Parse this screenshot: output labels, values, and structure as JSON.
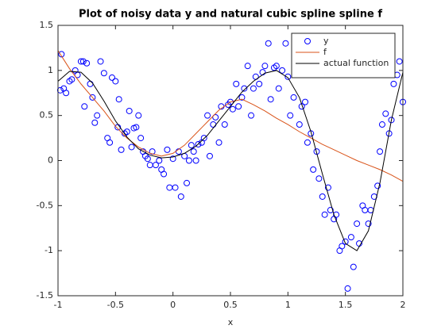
{
  "chart_data": {
    "type": "line",
    "title": "Plot of noisy data y and natural cubic spline spline f",
    "xlabel": "x",
    "xlim": [
      -1,
      2
    ],
    "ylim": [
      -1.5,
      1.5
    ],
    "xticks": [
      -1,
      -0.5,
      0,
      0.5,
      1,
      1.5,
      2
    ],
    "yticks": [
      -1.5,
      -1,
      -0.5,
      0,
      0.5,
      1,
      1.5
    ],
    "legend": "northeast",
    "x": [
      -1,
      -0.9,
      -0.8,
      -0.7,
      -0.6,
      -0.5,
      -0.4,
      -0.3,
      -0.2,
      -0.1,
      0,
      0.1,
      0.2,
      0.3,
      0.4,
      0.5,
      0.6,
      0.7,
      0.8,
      0.9,
      1,
      1.1,
      1.2,
      1.3,
      1.4,
      1.5,
      1.6,
      1.7,
      1.8,
      1.9,
      2
    ],
    "series": [
      {
        "name": "y",
        "color": "#0000ff",
        "marker": "circle",
        "x": [
          -0.98,
          -0.97,
          -0.95,
          -0.93,
          -0.9,
          -0.88,
          -0.85,
          -0.83,
          -0.8,
          -0.78,
          -0.77,
          -0.75,
          -0.72,
          -0.7,
          -0.68,
          -0.66,
          -0.63,
          -0.6,
          -0.57,
          -0.55,
          -0.53,
          -0.5,
          -0.48,
          -0.47,
          -0.45,
          -0.42,
          -0.4,
          -0.38,
          -0.36,
          -0.34,
          -0.32,
          -0.3,
          -0.28,
          -0.26,
          -0.24,
          -0.22,
          -0.2,
          -0.18,
          -0.15,
          -0.12,
          -0.1,
          -0.08,
          -0.05,
          -0.03,
          0,
          0.02,
          0.05,
          0.07,
          0.1,
          0.12,
          0.14,
          0.16,
          0.18,
          0.2,
          0.22,
          0.25,
          0.27,
          0.3,
          0.32,
          0.35,
          0.37,
          0.4,
          0.42,
          0.45,
          0.48,
          0.5,
          0.52,
          0.55,
          0.57,
          0.6,
          0.62,
          0.65,
          0.68,
          0.7,
          0.72,
          0.75,
          0.78,
          0.8,
          0.83,
          0.85,
          0.88,
          0.9,
          0.92,
          0.95,
          0.98,
          1,
          1.02,
          1.05,
          1.08,
          1.1,
          1.12,
          1.15,
          1.17,
          1.2,
          1.22,
          1.25,
          1.27,
          1.3,
          1.32,
          1.35,
          1.37,
          1.4,
          1.42,
          1.45,
          1.47,
          1.5,
          1.52,
          1.55,
          1.57,
          1.6,
          1.62,
          1.65,
          1.67,
          1.7,
          1.72,
          1.75,
          1.78,
          1.8,
          1.82,
          1.85,
          1.88,
          1.9,
          1.92,
          1.95,
          1.97,
          2
        ],
        "values": [
          0.78,
          1.18,
          0.8,
          0.75,
          0.88,
          0.9,
          1,
          0.95,
          1.1,
          1.1,
          0.6,
          1.08,
          0.85,
          0.7,
          0.42,
          0.5,
          1.1,
          0.97,
          0.25,
          0.2,
          0.92,
          0.88,
          0.37,
          0.68,
          0.12,
          0.3,
          0.32,
          0.55,
          0.15,
          0.36,
          0.37,
          0.5,
          0.25,
          0.1,
          0.05,
          0.02,
          -0.05,
          0.1,
          -0.05,
          0,
          -0.1,
          -0.15,
          0.12,
          -0.3,
          0.02,
          -0.3,
          0.1,
          -0.4,
          0.05,
          -0.25,
          0,
          0.17,
          0.1,
          0,
          0.18,
          0.2,
          0.25,
          0.5,
          0.05,
          0.4,
          0.48,
          0.2,
          0.6,
          0.4,
          0.62,
          0.65,
          0.57,
          0.85,
          0.6,
          0.7,
          0.8,
          1.05,
          0.5,
          0.8,
          0.93,
          0.85,
          0.98,
          1.05,
          1.3,
          0.68,
          1.03,
          1.05,
          0.8,
          1,
          1.3,
          0.93,
          0.5,
          0.7,
          1.02,
          0.4,
          0.6,
          0.65,
          0.2,
          0.3,
          -0.1,
          0.1,
          -0.2,
          -0.4,
          -0.6,
          -0.3,
          -0.55,
          -0.65,
          -0.6,
          -1,
          -0.95,
          -0.9,
          -1.42,
          -0.85,
          -1.18,
          -0.7,
          -0.92,
          -0.5,
          -0.55,
          -0.7,
          -0.55,
          -0.4,
          -0.28,
          0.1,
          0.4,
          0.52,
          0.3,
          0.45,
          0.85,
          0.95,
          1.1,
          0.65
        ]
      },
      {
        "name": "f",
        "color": "#d95319",
        "values": [
          1.22,
          1.02,
          0.85,
          0.7,
          0.55,
          0.38,
          0.25,
          0.15,
          0.08,
          0.05,
          0.08,
          0.17,
          0.3,
          0.43,
          0.56,
          0.65,
          0.68,
          0.62,
          0.55,
          0.47,
          0.4,
          0.32,
          0.25,
          0.18,
          0.12,
          0.06,
          0,
          -0.05,
          -0.1,
          -0.16,
          -0.23
        ]
      },
      {
        "name": "actual function",
        "color": "#000000",
        "values": [
          0.88,
          0.99,
          0.98,
          0.86,
          0.66,
          0.44,
          0.26,
          0.13,
          0.06,
          0.03,
          0.04,
          0.08,
          0.16,
          0.28,
          0.44,
          0.6,
          0.76,
          0.88,
          0.97,
          1,
          0.92,
          0.7,
          0.32,
          -0.15,
          -0.6,
          -0.92,
          -1,
          -0.78,
          -0.25,
          0.45,
          0.98
        ]
      }
    ]
  }
}
